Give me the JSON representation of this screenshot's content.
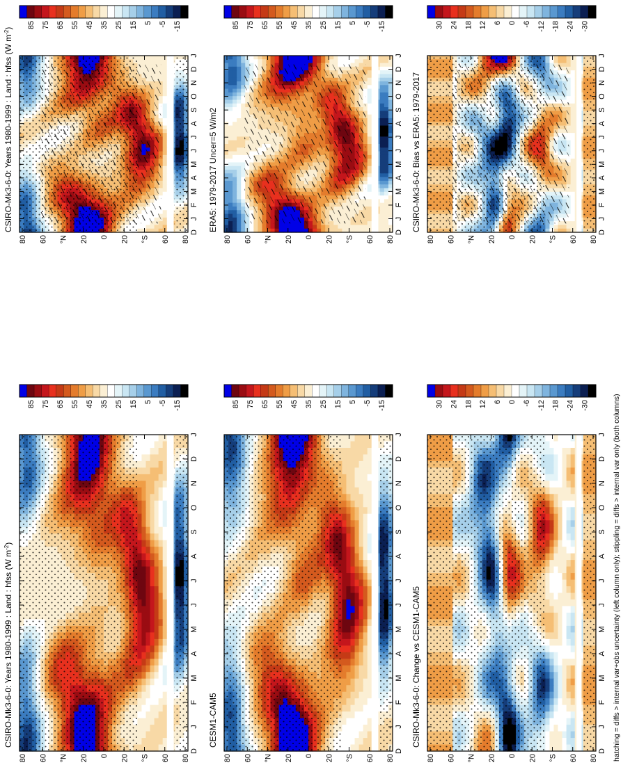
{
  "footnote": "hatching = diffs > internal var+obs uncertainty (left column only); stippling = diffs > internal var only (both columns)",
  "palettes": {
    "hfss": [
      "#000000",
      "#0b1f52",
      "#153d7a",
      "#215ea3",
      "#3b7cc0",
      "#5a98d0",
      "#7fb4de",
      "#a6cfe9",
      "#c9e6f3",
      "#e4f4f8",
      "#ffffff",
      "#fbefd4",
      "#f8d9a6",
      "#f5be74",
      "#ef9d46",
      "#e47c2c",
      "#d45a1e",
      "#c53a16",
      "#e8301e",
      "#c4161c",
      "#9a0c12",
      "#6e0610",
      "#0000e6"
    ],
    "diff": [
      "#000000",
      "#0b1f52",
      "#153d7a",
      "#215ea3",
      "#3b7cc0",
      "#5a98d0",
      "#7fb4de",
      "#a6cfe9",
      "#c9e6f3",
      "#e4f4f8",
      "#ffffff",
      "#fbefd4",
      "#f8d9a6",
      "#f5be74",
      "#ef9d46",
      "#e47c2c",
      "#d45a1e",
      "#c53a16",
      "#e8301e",
      "#c4161c",
      "#9a0c12",
      "#0000e6"
    ]
  },
  "chart_data": [
    {
      "type": "heatmap",
      "panel": "top-left",
      "title": "CSIRO-Mk3-6-0: Years 1980-1999 : Land : hfss (W m",
      "title_unit_exp": "-2",
      "title_close": ")",
      "x": [
        "D",
        "J",
        "F",
        "M",
        "A",
        "M",
        "J",
        "J",
        "A",
        "S",
        "O",
        "N",
        "D",
        "J"
      ],
      "y_ticks": [
        "80",
        "60",
        "°N",
        "20",
        "0",
        "20",
        "°S",
        "60",
        "80"
      ],
      "colorbar_ticks": [
        "85",
        "75",
        "65",
        "55",
        "45",
        "35",
        "25",
        "15",
        "5",
        "-5",
        "-15"
      ],
      "colorbar_range": [
        -20,
        90
      ],
      "palette": "hfss",
      "field": "hfss",
      "seed": 0,
      "hatch": true,
      "stipple": true
    },
    {
      "type": "heatmap",
      "panel": "middle-left",
      "title": "ERA5: 1979-2017 Uncer=5 W/m2",
      "x": [
        "D",
        "J",
        "F",
        "M",
        "A",
        "M",
        "J",
        "J",
        "A",
        "S",
        "O",
        "N",
        "D",
        "J"
      ],
      "y_ticks": [
        "80",
        "60",
        "°N",
        "20",
        "0",
        "20",
        "°S",
        "60",
        "80"
      ],
      "colorbar_ticks": [
        "85",
        "75",
        "65",
        "55",
        "45",
        "35",
        "25",
        "15",
        "5",
        "-5",
        "-15"
      ],
      "colorbar_range": [
        -20,
        90
      ],
      "palette": "hfss",
      "field": "hfss",
      "seed": 1,
      "hatch": true,
      "stipple": false
    },
    {
      "type": "heatmap",
      "panel": "bottom-left",
      "title": "CSIRO-Mk3-6-0: Bias vs ERA5: 1979-2017",
      "x": [
        "D",
        "J",
        "F",
        "M",
        "A",
        "M",
        "J",
        "J",
        "A",
        "S",
        "O",
        "N",
        "D",
        "J"
      ],
      "y_ticks": [
        "80",
        "60",
        "°N",
        "20",
        "0",
        "20",
        "°S",
        "60",
        "80"
      ],
      "colorbar_ticks": [
        "30",
        "24",
        "18",
        "12",
        "6",
        "0",
        "-6",
        "-12",
        "-18",
        "-24",
        "-30"
      ],
      "colorbar_range": [
        -33,
        33
      ],
      "palette": "diff",
      "field": "diff",
      "seed": 2,
      "hatch": true,
      "stipple": true
    },
    {
      "type": "heatmap",
      "panel": "top-right",
      "title": "CSIRO-Mk3-6-0: Years 1980-1999 : Land : hfss (W m",
      "title_unit_exp": "-2",
      "title_close": ")",
      "x": [
        "D",
        "J",
        "F",
        "M",
        "A",
        "M",
        "J",
        "J",
        "A",
        "S",
        "O",
        "N",
        "D",
        "J"
      ],
      "y_ticks": [
        "80",
        "60",
        "°N",
        "20",
        "0",
        "20",
        "°S",
        "60",
        "80"
      ],
      "colorbar_ticks": [
        "85",
        "75",
        "65",
        "55",
        "45",
        "35",
        "25",
        "15",
        "5",
        "-5",
        "-15"
      ],
      "colorbar_range": [
        -20,
        90
      ],
      "palette": "hfss",
      "field": "hfss",
      "seed": 3,
      "hatch": false,
      "stipple": true
    },
    {
      "type": "heatmap",
      "panel": "middle-right",
      "title": "CESM1-CAM5",
      "x": [
        "D",
        "J",
        "F",
        "M",
        "A",
        "M",
        "J",
        "J",
        "A",
        "S",
        "O",
        "N",
        "D",
        "J"
      ],
      "y_ticks": [
        "80",
        "60",
        "°N",
        "20",
        "0",
        "20",
        "°S",
        "60",
        "80"
      ],
      "colorbar_ticks": [
        "85",
        "75",
        "65",
        "55",
        "45",
        "35",
        "25",
        "15",
        "5",
        "-5",
        "-15"
      ],
      "colorbar_range": [
        -20,
        90
      ],
      "palette": "hfss",
      "field": "hfss",
      "seed": 4,
      "hatch": false,
      "stipple": true
    },
    {
      "type": "heatmap",
      "panel": "bottom-right",
      "title": "CSIRO-Mk3-6-0: Change vs CESM1-CAM5",
      "x": [
        "D",
        "J",
        "F",
        "M",
        "A",
        "M",
        "J",
        "J",
        "A",
        "S",
        "O",
        "N",
        "D",
        "J"
      ],
      "y_ticks": [
        "80",
        "60",
        "°N",
        "20",
        "0",
        "20",
        "°S",
        "60",
        "80"
      ],
      "colorbar_ticks": [
        "30",
        "24",
        "18",
        "12",
        "6",
        "0",
        "-6",
        "-12",
        "-18",
        "-24",
        "-30"
      ],
      "colorbar_range": [
        -33,
        33
      ],
      "palette": "diff",
      "field": "diff",
      "seed": 5,
      "hatch": false,
      "stipple": true
    }
  ]
}
